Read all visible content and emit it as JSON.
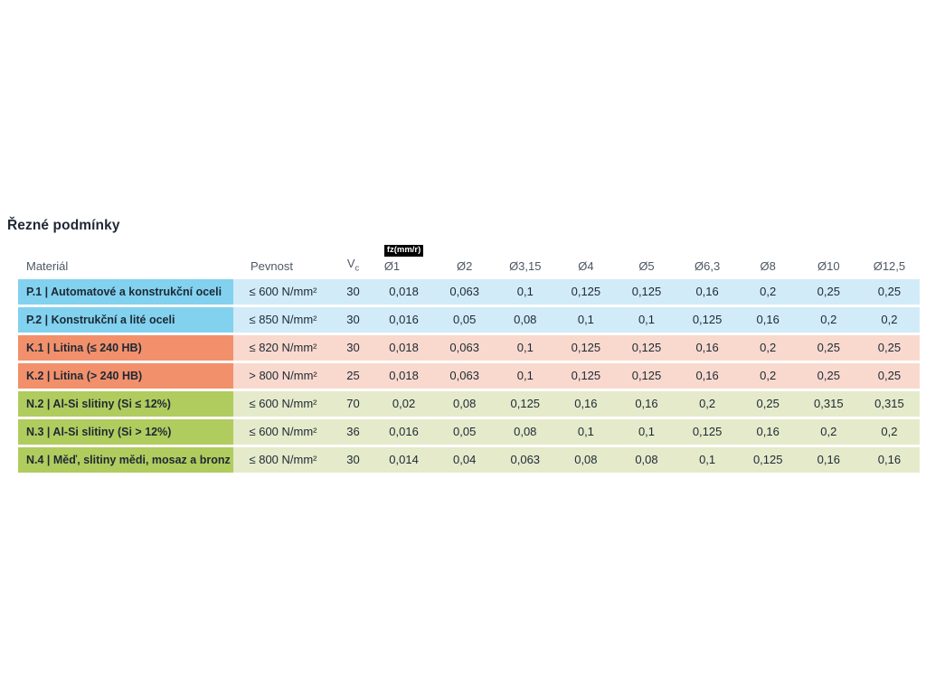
{
  "page_title": "Řezné podmínky",
  "table": {
    "unit_badge": "fz(mm/r)",
    "columns": {
      "material": "Materiál",
      "strength": "Pevnost",
      "vc_main": "V",
      "vc_sub": "c",
      "diameters": [
        "Ø1",
        "Ø2",
        "Ø3,15",
        "Ø4",
        "Ø5",
        "Ø6,3",
        "Ø8",
        "Ø10",
        "Ø12,5"
      ]
    },
    "colors": {
      "P": {
        "label": "#82d1ef",
        "cells": "#d2ebf8"
      },
      "K": {
        "label": "#f2906c",
        "cells": "#f9d9cd"
      },
      "N": {
        "label": "#b0cc5e",
        "cells": "#e5eaca"
      },
      "title_text": "#1e2733",
      "header_text": "#4e5864",
      "body_text": "#1d2935",
      "badge_bg": "#000000",
      "badge_text": "#ffffff"
    },
    "rows": [
      {
        "group": "P",
        "material": "P.1 | Automatové a konstrukční oceli",
        "strength": "≤ 600 N/mm²",
        "vc": "30",
        "fz": [
          "0,018",
          "0,063",
          "0,1",
          "0,125",
          "0,125",
          "0,16",
          "0,2",
          "0,25",
          "0,25"
        ]
      },
      {
        "group": "P",
        "material": "P.2 | Konstrukční a lité oceli",
        "strength": "≤ 850 N/mm²",
        "vc": "30",
        "fz": [
          "0,016",
          "0,05",
          "0,08",
          "0,1",
          "0,1",
          "0,125",
          "0,16",
          "0,2",
          "0,2"
        ]
      },
      {
        "group": "K",
        "material": "K.1 | Litina (≤ 240 HB)",
        "strength": "≤ 820 N/mm²",
        "vc": "30",
        "fz": [
          "0,018",
          "0,063",
          "0,1",
          "0,125",
          "0,125",
          "0,16",
          "0,2",
          "0,25",
          "0,25"
        ]
      },
      {
        "group": "K",
        "material": "K.2 | Litina (> 240 HB)",
        "strength": "> 800 N/mm²",
        "vc": "25",
        "fz": [
          "0,018",
          "0,063",
          "0,1",
          "0,125",
          "0,125",
          "0,16",
          "0,2",
          "0,25",
          "0,25"
        ]
      },
      {
        "group": "N",
        "material": "N.2 | Al-Si slitiny (Si ≤ 12%)",
        "strength": "≤ 600 N/mm²",
        "vc": "70",
        "fz": [
          "0,02",
          "0,08",
          "0,125",
          "0,16",
          "0,16",
          "0,2",
          "0,25",
          "0,315",
          "0,315"
        ]
      },
      {
        "group": "N",
        "material": "N.3 | Al-Si slitiny (Si > 12%)",
        "strength": "≤ 600 N/mm²",
        "vc": "36",
        "fz": [
          "0,016",
          "0,05",
          "0,08",
          "0,1",
          "0,1",
          "0,125",
          "0,16",
          "0,2",
          "0,2"
        ]
      },
      {
        "group": "N",
        "material": "N.4 | Měď, slitiny mědi, mosaz a bronz",
        "strength": "≤ 800 N/mm²",
        "vc": "30",
        "fz": [
          "0,014",
          "0,04",
          "0,063",
          "0,08",
          "0,08",
          "0,1",
          "0,125",
          "0,16",
          "0,16"
        ]
      }
    ]
  }
}
